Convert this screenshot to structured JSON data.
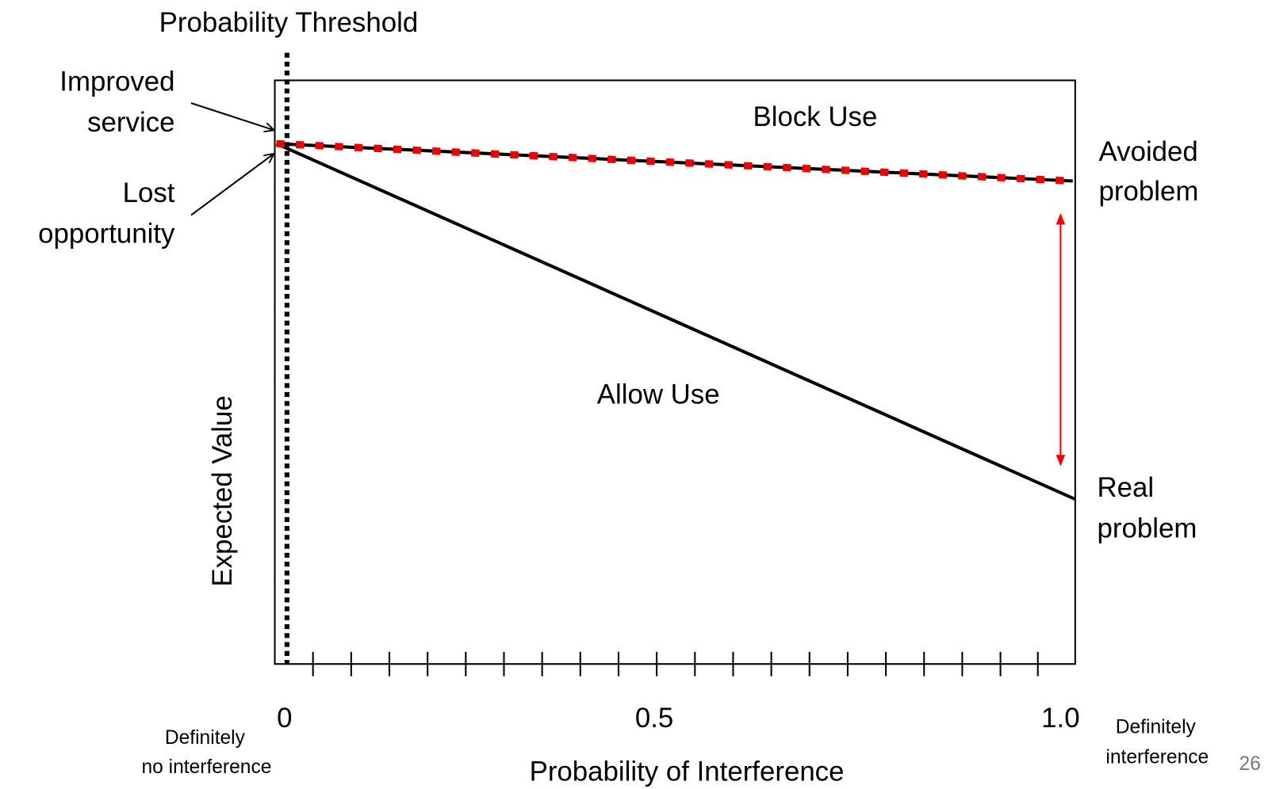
{
  "title": "Probability Threshold",
  "regions": {
    "upper": "Block Use",
    "lower": "Allow Use"
  },
  "y_axis_label": "Expected Value",
  "x_axis": {
    "label": "Probability of Interference",
    "tick_labels": [
      "0",
      "0.5",
      "1.0"
    ],
    "left_note": [
      "Definitely",
      "no interference"
    ],
    "right_note": [
      "Definitely",
      "interference"
    ]
  },
  "left_annotations": {
    "top": [
      "Improved",
      "service"
    ],
    "bottom": [
      "Lost",
      "opportunity"
    ]
  },
  "right_annotations": {
    "top": [
      "Avoided",
      "problem"
    ],
    "bottom": [
      "Real",
      "problem"
    ]
  },
  "slide_number": "26"
}
